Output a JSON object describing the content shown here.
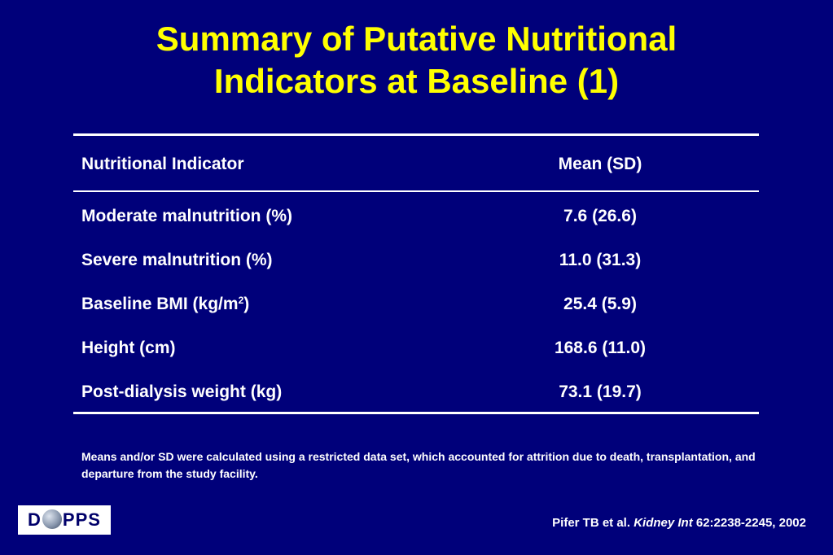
{
  "title": {
    "line1": "Summary of Putative Nutritional",
    "line2": "Indicators at Baseline (1)"
  },
  "table": {
    "headers": [
      "Nutritional Indicator",
      "Mean (SD)"
    ],
    "rows": [
      {
        "indicator": "Moderate malnutrition (%)",
        "value": "7.6 (26.6)"
      },
      {
        "indicator": "Severe malnutrition (%)",
        "value": "11.0 (31.3)"
      },
      {
        "indicator_prefix": "Baseline BMI (kg/m",
        "indicator_sup": "2",
        "indicator_suffix": ")",
        "value": "25.4 (5.9)"
      },
      {
        "indicator": "Height (cm)",
        "value": "168.6 (11.0)"
      },
      {
        "indicator": "Post-dialysis weight (kg)",
        "value": "73.1 (19.7)"
      }
    ]
  },
  "footnote": "Means and/or SD were calculated using a restricted data set, which accounted for attrition due to death, transplantation, and departure from the study facility.",
  "logo": {
    "left": "D",
    "right": "PPS"
  },
  "citation": {
    "authors": "Pifer TB et al. ",
    "journal": "Kidney Int",
    "ref": " 62:2238-2245, 2002"
  },
  "colors": {
    "background": "#00007a",
    "title": "#ffff00",
    "text": "#ffffff"
  }
}
